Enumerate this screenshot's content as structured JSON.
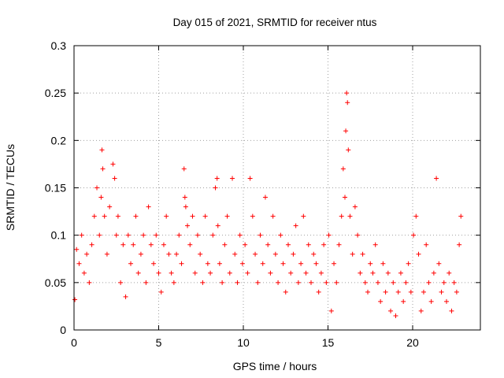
{
  "chart_data": {
    "type": "scatter",
    "title": "Day 015 of 2021, SRMTID for receiver ntus",
    "xlabel": "GPS time / hours",
    "ylabel": "SRMTID / TECUs",
    "xlim": [
      0,
      24
    ],
    "ylim": [
      0,
      0.3
    ],
    "xticks": [
      0,
      5,
      10,
      15,
      20
    ],
    "xtick_labels": [
      "0",
      "5",
      "10",
      "15",
      "20"
    ],
    "yticks": [
      0,
      0.05,
      0.1,
      0.15,
      0.2,
      0.25,
      0.3
    ],
    "ytick_labels": [
      "0",
      "0.05",
      "0.1",
      "0.15",
      "0.2",
      "0.25",
      "0.3"
    ],
    "grid": true,
    "marker": "plus",
    "color": "#ff0000",
    "series": [
      {
        "name": "SRMTID",
        "x": [
          0.05,
          0.15,
          0.3,
          0.45,
          0.6,
          0.75,
          0.9,
          1.05,
          1.2,
          1.35,
          1.5,
          1.6,
          1.65,
          1.7,
          1.8,
          1.95,
          2.1,
          2.3,
          2.4,
          2.5,
          2.6,
          2.75,
          2.9,
          3.05,
          3.2,
          3.35,
          3.5,
          3.65,
          3.8,
          3.95,
          4.1,
          4.25,
          4.4,
          4.55,
          4.7,
          4.85,
          5.0,
          5.15,
          5.3,
          5.45,
          5.6,
          5.75,
          5.9,
          6.05,
          6.2,
          6.35,
          6.5,
          6.55,
          6.6,
          6.7,
          6.85,
          7.0,
          7.15,
          7.3,
          7.45,
          7.6,
          7.75,
          7.9,
          8.05,
          8.2,
          8.35,
          8.45,
          8.5,
          8.6,
          8.75,
          8.9,
          9.05,
          9.2,
          9.35,
          9.5,
          9.65,
          9.8,
          9.95,
          10.1,
          10.25,
          10.4,
          10.55,
          10.7,
          10.85,
          11.0,
          11.15,
          11.3,
          11.45,
          11.6,
          11.75,
          11.9,
          12.05,
          12.2,
          12.35,
          12.5,
          12.65,
          12.8,
          12.95,
          13.1,
          13.25,
          13.4,
          13.55,
          13.7,
          13.85,
          14.0,
          14.15,
          14.3,
          14.45,
          14.6,
          14.75,
          14.9,
          15.05,
          15.2,
          15.35,
          15.5,
          15.65,
          15.8,
          15.9,
          16.0,
          16.05,
          16.1,
          16.15,
          16.2,
          16.3,
          16.45,
          16.6,
          16.75,
          16.9,
          17.05,
          17.2,
          17.35,
          17.5,
          17.65,
          17.8,
          17.95,
          18.1,
          18.25,
          18.4,
          18.55,
          18.7,
          18.85,
          19.0,
          19.15,
          19.3,
          19.45,
          19.6,
          19.75,
          19.9,
          20.05,
          20.2,
          20.35,
          20.5,
          20.65,
          20.8,
          20.95,
          21.1,
          21.25,
          21.4,
          21.55,
          21.7,
          21.85,
          22.0,
          22.15,
          22.3,
          22.45,
          22.6,
          22.75,
          22.85
        ],
        "y": [
          0.032,
          0.085,
          0.07,
          0.1,
          0.06,
          0.08,
          0.05,
          0.09,
          0.12,
          0.15,
          0.1,
          0.14,
          0.19,
          0.17,
          0.12,
          0.08,
          0.13,
          0.175,
          0.16,
          0.1,
          0.12,
          0.05,
          0.09,
          0.035,
          0.1,
          0.07,
          0.09,
          0.12,
          0.06,
          0.08,
          0.1,
          0.05,
          0.13,
          0.09,
          0.07,
          0.1,
          0.06,
          0.04,
          0.09,
          0.12,
          0.08,
          0.06,
          0.05,
          0.08,
          0.1,
          0.07,
          0.17,
          0.14,
          0.13,
          0.11,
          0.09,
          0.12,
          0.06,
          0.1,
          0.08,
          0.05,
          0.12,
          0.07,
          0.06,
          0.1,
          0.15,
          0.16,
          0.11,
          0.07,
          0.05,
          0.09,
          0.12,
          0.06,
          0.16,
          0.08,
          0.05,
          0.1,
          0.07,
          0.09,
          0.06,
          0.16,
          0.12,
          0.08,
          0.05,
          0.1,
          0.07,
          0.14,
          0.09,
          0.06,
          0.12,
          0.08,
          0.05,
          0.1,
          0.07,
          0.04,
          0.09,
          0.06,
          0.08,
          0.11,
          0.05,
          0.07,
          0.12,
          0.06,
          0.09,
          0.05,
          0.08,
          0.07,
          0.04,
          0.06,
          0.09,
          0.05,
          0.1,
          0.02,
          0.07,
          0.05,
          0.09,
          0.12,
          0.17,
          0.14,
          0.21,
          0.25,
          0.24,
          0.19,
          0.12,
          0.08,
          0.13,
          0.1,
          0.06,
          0.08,
          0.05,
          0.04,
          0.07,
          0.06,
          0.09,
          0.05,
          0.03,
          0.07,
          0.04,
          0.06,
          0.02,
          0.05,
          0.015,
          0.04,
          0.06,
          0.03,
          0.05,
          0.07,
          0.04,
          0.1,
          0.12,
          0.08,
          0.02,
          0.04,
          0.09,
          0.05,
          0.03,
          0.06,
          0.16,
          0.07,
          0.04,
          0.05,
          0.03,
          0.06,
          0.02,
          0.05,
          0.04,
          0.09,
          0.12
        ]
      }
    ]
  }
}
